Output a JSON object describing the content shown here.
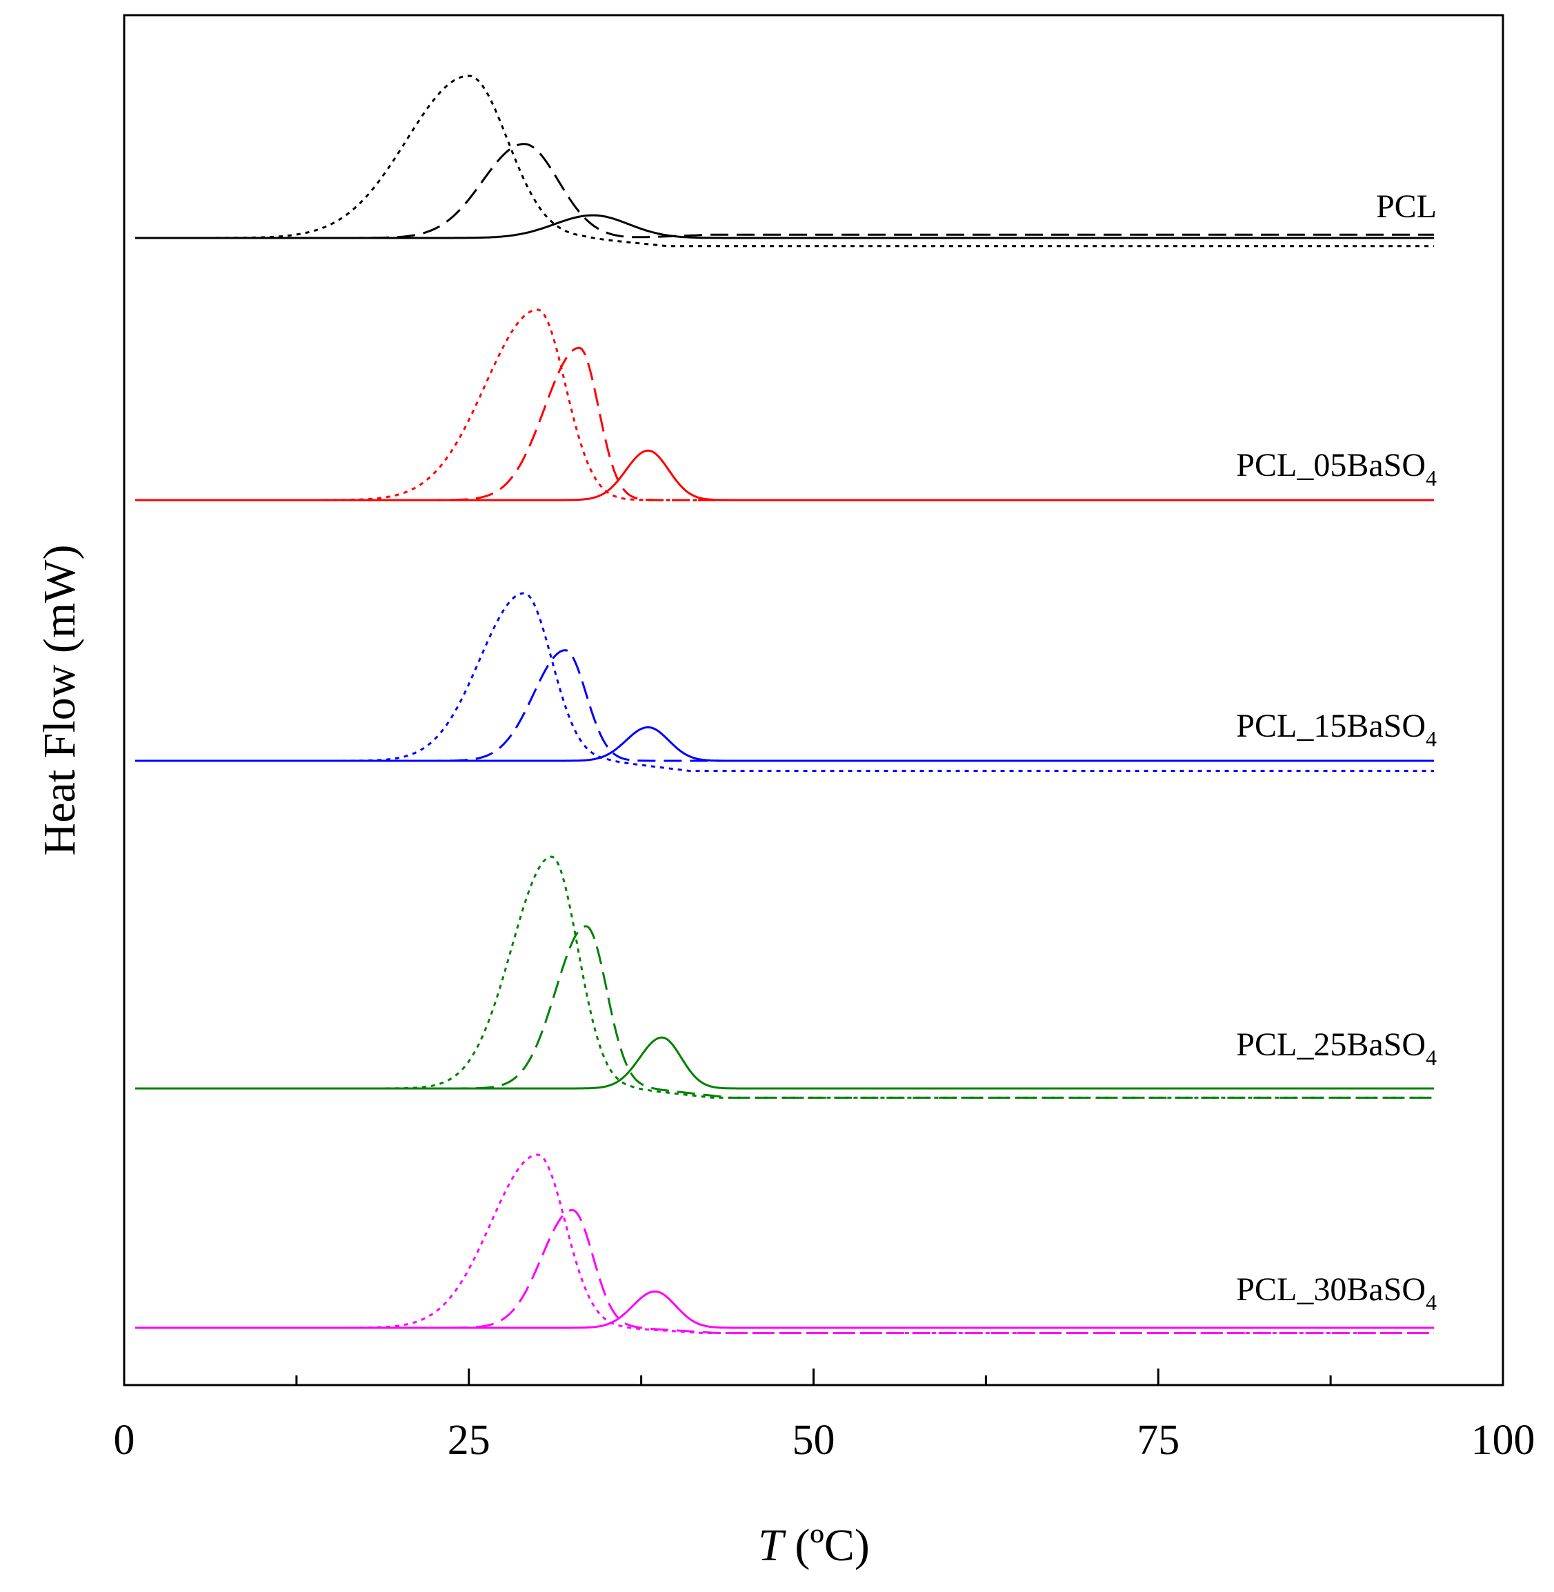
{
  "chart_data": {
    "type": "line",
    "title": "",
    "xlabel": {
      "var": "T",
      "unit": " (ºC)"
    },
    "ylabel": "Heat Flow (mW)",
    "xlim": [
      0,
      100
    ],
    "x_ticks": [
      0,
      25,
      50,
      75,
      100
    ],
    "y_ticks_shown": false,
    "grid": false,
    "legend": "none",
    "line_styles": [
      "solid",
      "dashed",
      "dotted"
    ],
    "series": [
      {
        "name": "PCL",
        "label_parts": [
          "PCL",
          "",
          ""
        ],
        "color": "#000000",
        "curves": [
          {
            "style": "dotted",
            "peak_x": 25,
            "height": 1.0,
            "sigma_left": 4.5,
            "sigma_right": 2.8,
            "end_offset": -0.05
          },
          {
            "style": "dashed",
            "peak_x": 29,
            "height": 0.58,
            "sigma_left": 3.0,
            "sigma_right": 2.5,
            "end_offset": 0.02
          },
          {
            "style": "solid",
            "peak_x": 34,
            "height": 0.14,
            "sigma_left": 2.8,
            "sigma_right": 2.6,
            "end_offset": 0.0
          }
        ]
      },
      {
        "name": "PCL_05BaSO4",
        "label_parts": [
          "PCL_05BaSO",
          "4",
          ""
        ],
        "color": "#ff0000",
        "curves": [
          {
            "style": "dotted",
            "peak_x": 30,
            "height": 1.0,
            "sigma_left": 3.8,
            "sigma_right": 2.0,
            "end_offset": 0.0
          },
          {
            "style": "dashed",
            "peak_x": 33,
            "height": 0.8,
            "sigma_left": 2.5,
            "sigma_right": 1.4,
            "end_offset": 0.0
          },
          {
            "style": "solid",
            "peak_x": 38,
            "height": 0.26,
            "sigma_left": 1.6,
            "sigma_right": 1.5,
            "end_offset": 0.0
          }
        ]
      },
      {
        "name": "PCL_15BaSO4",
        "label_parts": [
          "PCL_15BaSO",
          "4",
          ""
        ],
        "color": "#0000ff",
        "curves": [
          {
            "style": "dotted",
            "peak_x": 29,
            "height": 1.0,
            "sigma_left": 3.2,
            "sigma_right": 2.0,
            "end_offset": -0.06
          },
          {
            "style": "dashed",
            "peak_x": 32,
            "height": 0.66,
            "sigma_left": 2.3,
            "sigma_right": 1.5,
            "end_offset": 0.0
          },
          {
            "style": "solid",
            "peak_x": 38,
            "height": 0.2,
            "sigma_left": 1.6,
            "sigma_right": 1.5,
            "end_offset": 0.0
          }
        ]
      },
      {
        "name": "PCL_25BaSO4",
        "label_parts": [
          "PCL_25BaSO",
          "4",
          ""
        ],
        "color": "#008000",
        "curves": [
          {
            "style": "dotted",
            "peak_x": 31,
            "height": 1.0,
            "sigma_left": 2.9,
            "sigma_right": 1.9,
            "end_offset": -0.04
          },
          {
            "style": "dashed",
            "peak_x": 33.5,
            "height": 0.7,
            "sigma_left": 2.2,
            "sigma_right": 1.5,
            "end_offset": -0.04
          },
          {
            "style": "solid",
            "peak_x": 39,
            "height": 0.22,
            "sigma_left": 1.6,
            "sigma_right": 1.4,
            "end_offset": 0.0
          }
        ]
      },
      {
        "name": "PCL_30BaSO4",
        "label_parts": [
          "PCL_30BaSO",
          "4",
          ""
        ],
        "color": "#ff00ff",
        "curves": [
          {
            "style": "dotted",
            "peak_x": 30,
            "height": 1.0,
            "sigma_left": 3.4,
            "sigma_right": 2.0,
            "end_offset": -0.03
          },
          {
            "style": "dashed",
            "peak_x": 32.5,
            "height": 0.68,
            "sigma_left": 2.2,
            "sigma_right": 1.5,
            "end_offset": -0.03
          },
          {
            "style": "solid",
            "peak_x": 38.5,
            "height": 0.21,
            "sigma_left": 1.6,
            "sigma_right": 1.5,
            "end_offset": 0.0
          }
        ]
      }
    ]
  }
}
